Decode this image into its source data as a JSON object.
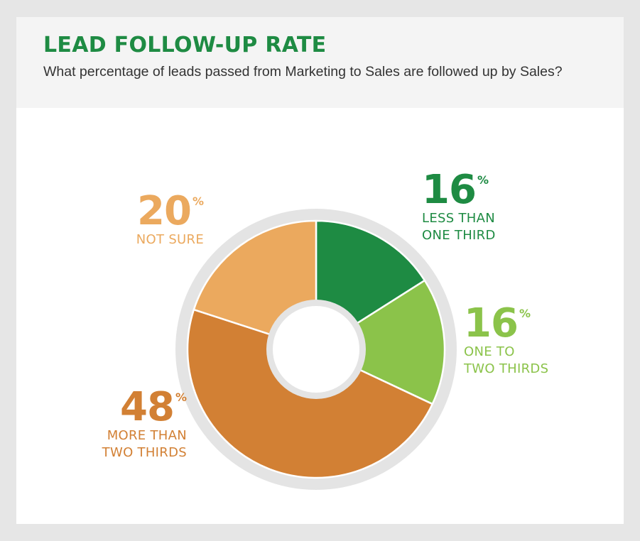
{
  "title": "LEAD FOLLOW-UP RATE",
  "subtitle": "What percentage of leads passed from Marketing to Sales are followed up by Sales?",
  "colors": {
    "title": "#1e8b43",
    "ring": "#e4e4e4"
  },
  "chart_data": {
    "type": "pie",
    "variant": "donut",
    "unit": "%",
    "slices": [
      {
        "value": 16,
        "label": "LESS THAN\nONE THIRD",
        "color": "#1e8b43"
      },
      {
        "value": 16,
        "label": "ONE TO\nTWO THIRDS",
        "color": "#8bc34a"
      },
      {
        "value": 48,
        "label": "MORE THAN\nTWO THIRDS",
        "color": "#d28034"
      },
      {
        "value": 20,
        "label": "NOT SURE",
        "color": "#eba95e"
      }
    ]
  }
}
